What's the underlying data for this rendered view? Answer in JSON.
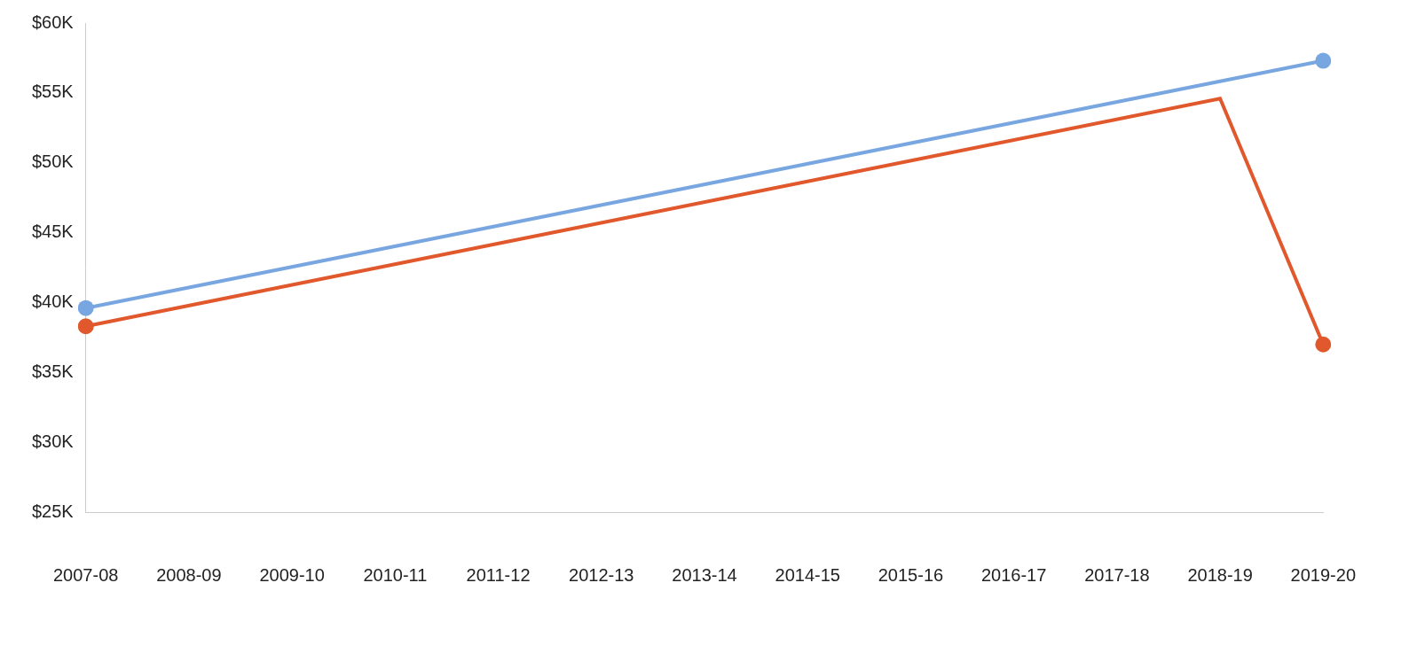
{
  "chart_data": {
    "type": "line",
    "categories": [
      "2007-08",
      "2008-09",
      "2009-10",
      "2010-11",
      "2011-12",
      "2012-13",
      "2013-14",
      "2014-15",
      "2015-16",
      "2016-17",
      "2017-18",
      "2018-19",
      "2019-20"
    ],
    "series": [
      {
        "color": "#78a6e0",
        "values": [
          39600,
          null,
          null,
          null,
          null,
          null,
          null,
          null,
          null,
          null,
          null,
          null,
          57300
        ]
      },
      {
        "color": "#e0582c",
        "values": [
          38300,
          null,
          null,
          null,
          null,
          null,
          null,
          null,
          null,
          null,
          null,
          54600,
          37000
        ]
      }
    ],
    "ylim": [
      25000,
      60000
    ],
    "yticks": [
      {
        "value": 25000,
        "label": "$25K"
      },
      {
        "value": 30000,
        "label": "$30K"
      },
      {
        "value": 35000,
        "label": "$35K"
      },
      {
        "value": 40000,
        "label": "$40K"
      },
      {
        "value": 45000,
        "label": "$45K"
      },
      {
        "value": 50000,
        "label": "$50K"
      },
      {
        "value": 55000,
        "label": "$55K"
      },
      {
        "value": 60000,
        "label": "$60K"
      }
    ],
    "grid": false,
    "marker": "circle"
  }
}
